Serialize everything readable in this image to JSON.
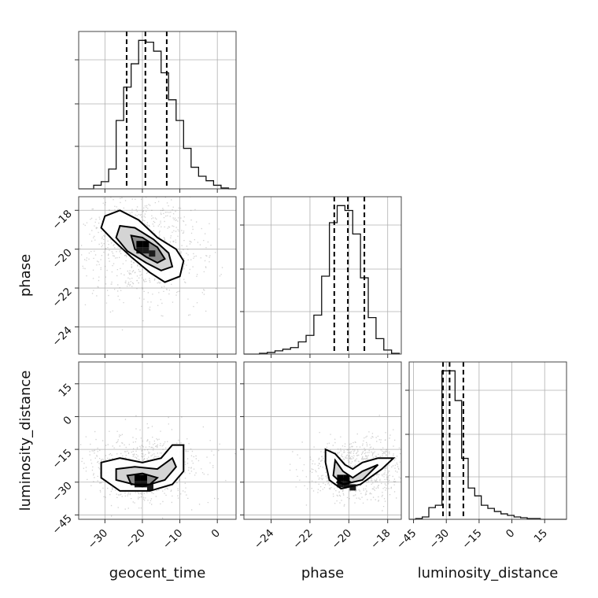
{
  "chart_data": {
    "type": "corner",
    "parameters": [
      "geocent_time",
      "phase",
      "luminosity_distance"
    ],
    "axes": {
      "geocent_time": {
        "range": [
          -37,
          5
        ],
        "ticks": [
          -30,
          -20,
          -10,
          0
        ]
      },
      "phase": {
        "range": [
          -25.4,
          -17.3
        ],
        "ticks": [
          -24,
          -22,
          -20,
          -18
        ]
      },
      "luminosity_distance": {
        "range": [
          -47,
          25
        ],
        "ticks": [
          -45,
          -30,
          -15,
          0,
          15
        ]
      }
    },
    "grid": true,
    "quantile_lines": {
      "geocent_time": [
        -24.2,
        -19.2,
        -13.5
      ],
      "phase": [
        -20.75,
        -20.05,
        -19.2
      ],
      "luminosity_distance": [
        -31.5,
        -28.5,
        -22.2
      ]
    },
    "histograms": {
      "geocent_time": {
        "edges": [
          -37,
          -35,
          -33,
          -31,
          -29,
          -27,
          -25,
          -23,
          -21,
          -19,
          -17,
          -15,
          -13,
          -11,
          -9,
          -7,
          -5,
          -3,
          -1,
          1,
          3,
          5
        ],
        "counts": [
          0,
          0,
          4,
          8,
          22,
          76,
          113,
          139,
          165,
          163,
          153,
          129,
          99,
          76,
          45,
          24,
          14,
          9,
          4,
          1,
          0
        ]
      },
      "phase": {
        "edges": [
          -25.4,
          -25.0,
          -24.6,
          -24.2,
          -23.8,
          -23.4,
          -23.0,
          -22.6,
          -22.2,
          -21.8,
          -21.4,
          -21.0,
          -20.6,
          -20.2,
          -19.8,
          -19.4,
          -19.0,
          -18.6,
          -18.2,
          -17.8,
          -17.4
        ],
        "counts": [
          0,
          0,
          1,
          2,
          4,
          6,
          8,
          15,
          23,
          48,
          96,
          162,
          183,
          177,
          148,
          94,
          45,
          19,
          5,
          1
        ]
      },
      "luminosity_distance": {
        "edges": [
          -47,
          -44,
          -41,
          -38,
          -35,
          -32,
          -29,
          -26,
          -23,
          -20,
          -17,
          -14,
          -11,
          -8,
          -5,
          -2,
          1,
          4,
          7,
          10,
          13,
          16,
          19,
          22,
          25
        ],
        "counts": [
          0,
          1,
          3,
          15,
          18,
          190,
          190,
          152,
          78,
          40,
          30,
          18,
          14,
          10,
          7,
          5,
          3,
          2,
          1,
          1,
          0,
          0,
          0,
          0
        ]
      }
    },
    "pairs": [
      {
        "x": "geocent_time",
        "y": "phase",
        "density_center": [
          -19.5,
          -19.9
        ],
        "contours": [
          [
            [
              -30,
              -18.3
            ],
            [
              -26,
              -18.0
            ],
            [
              -21,
              -18.5
            ],
            [
              -16,
              -19.4
            ],
            [
              -11,
              -20.0
            ],
            [
              -9,
              -20.6
            ],
            [
              -10,
              -21.4
            ],
            [
              -14,
              -21.7
            ],
            [
              -18,
              -21.2
            ],
            [
              -23,
              -20.4
            ],
            [
              -28,
              -19.5
            ],
            [
              -31,
              -18.9
            ]
          ],
          [
            [
              -26,
              -18.8
            ],
            [
              -22,
              -18.9
            ],
            [
              -17,
              -19.5
            ],
            [
              -13,
              -20.2
            ],
            [
              -12,
              -20.9
            ],
            [
              -15,
              -21.1
            ],
            [
              -19,
              -20.7
            ],
            [
              -24,
              -20.1
            ],
            [
              -27,
              -19.4
            ]
          ],
          [
            [
              -23,
              -19.3
            ],
            [
              -20,
              -19.4
            ],
            [
              -16,
              -19.9
            ],
            [
              -14,
              -20.5
            ],
            [
              -16,
              -20.7
            ],
            [
              -19,
              -20.4
            ],
            [
              -22,
              -20.0
            ]
          ]
        ]
      },
      {
        "x": "geocent_time",
        "y": "luminosity_distance",
        "density_center": [
          -20,
          -29.5
        ],
        "contours": [
          [
            [
              -31,
              -21
            ],
            [
              -26,
              -19
            ],
            [
              -20,
              -21
            ],
            [
              -15,
              -19
            ],
            [
              -12,
              -13
            ],
            [
              -9,
              -13
            ],
            [
              -9,
              -25
            ],
            [
              -12,
              -31
            ],
            [
              -18,
              -34
            ],
            [
              -26,
              -34
            ],
            [
              -31,
              -28
            ]
          ],
          [
            [
              -27,
              -24
            ],
            [
              -22,
              -23
            ],
            [
              -16,
              -24
            ],
            [
              -12,
              -19
            ],
            [
              -11,
              -23
            ],
            [
              -14,
              -29
            ],
            [
              -20,
              -32
            ],
            [
              -27,
              -29
            ]
          ],
          [
            [
              -24,
              -27
            ],
            [
              -20,
              -26
            ],
            [
              -16,
              -28
            ],
            [
              -18,
              -31
            ],
            [
              -23,
              -31
            ]
          ]
        ]
      },
      {
        "x": "phase",
        "y": "luminosity_distance",
        "density_center": [
          -20.2,
          -29.5
        ],
        "contours": [
          [
            [
              -21.2,
              -15
            ],
            [
              -20.7,
              -17
            ],
            [
              -20.2,
              -22
            ],
            [
              -19.8,
              -24
            ],
            [
              -19.3,
              -21
            ],
            [
              -18.5,
              -19
            ],
            [
              -17.7,
              -19
            ],
            [
              -18.3,
              -24
            ],
            [
              -19.4,
              -31
            ],
            [
              -20.4,
              -33
            ],
            [
              -21.0,
              -29
            ],
            [
              -21.2,
              -21
            ]
          ],
          [
            [
              -20.7,
              -20
            ],
            [
              -20.3,
              -25
            ],
            [
              -19.8,
              -28
            ],
            [
              -19.3,
              -25
            ],
            [
              -18.5,
              -22
            ],
            [
              -19.3,
              -29
            ],
            [
              -20.3,
              -31
            ],
            [
              -20.8,
              -27
            ]
          ],
          [
            [
              -20.4,
              -28
            ],
            [
              -19.9,
              -30
            ],
            [
              -20.2,
              -31
            ],
            [
              -20.6,
              -30
            ]
          ]
        ]
      }
    ]
  }
}
